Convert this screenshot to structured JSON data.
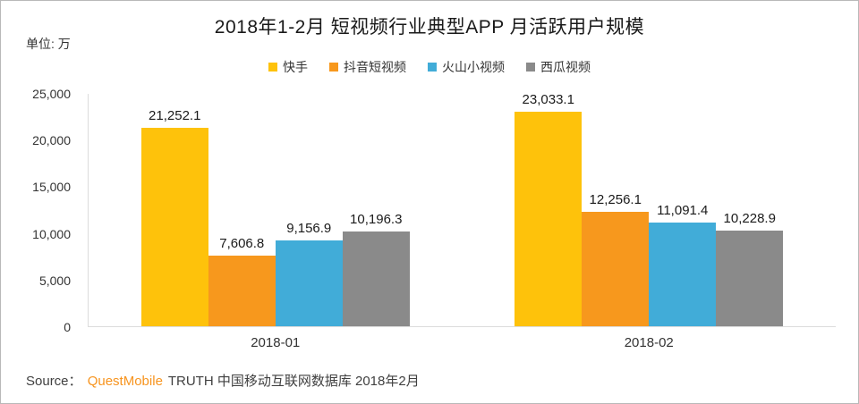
{
  "title": "2018年1-2月 短视频行业典型APP 月活跃用户规模",
  "unit_label": "单位: 万",
  "source": {
    "prefix": "Source：",
    "brand": "QuestMobile",
    "suffix": "TRUTH 中国移动互联网数据库 2018年2月"
  },
  "colors": {
    "kuaishou": "#fec20b",
    "douyin": "#f7981d",
    "huoshan": "#41acd8",
    "xigua": "#8a8a8a",
    "axis_line": "#dcdcdc",
    "brand_orange": "#f7941e"
  },
  "chart_data": {
    "type": "bar",
    "categories": [
      "2018-01",
      "2018-02"
    ],
    "series": [
      {
        "name": "快手",
        "color": "#fec20b",
        "values": [
          21252.1,
          23033.1
        ],
        "labels": [
          "21,252.1",
          "23,033.1"
        ]
      },
      {
        "name": "抖音短视频",
        "color": "#f7981d",
        "values": [
          7606.8,
          12256.1
        ],
        "labels": [
          "7,606.8",
          "12,256.1"
        ]
      },
      {
        "name": "火山小视频",
        "color": "#41acd8",
        "values": [
          9156.9,
          11091.4
        ],
        "labels": [
          "9,156.9",
          "11,091.4"
        ]
      },
      {
        "name": "西瓜视频",
        "color": "#8a8a8a",
        "values": [
          10196.3,
          10228.9
        ],
        "labels": [
          "10,196.3",
          "10,228.9"
        ]
      }
    ],
    "y_ticks": [
      "25,000",
      "20,000",
      "15,000",
      "10,000",
      "5,000",
      "0"
    ],
    "ylim": [
      0,
      25000
    ],
    "grid": false,
    "legend_position": "top",
    "title": "2018年1-2月 短视频行业典型APP 月活跃用户规模",
    "ylabel_unit": "万"
  }
}
